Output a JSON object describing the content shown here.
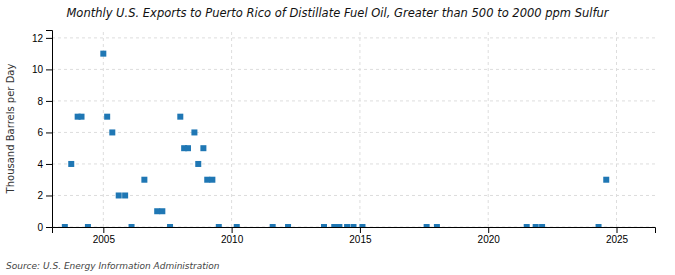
{
  "chart_data": {
    "type": "scatter",
    "title": "Monthly U.S. Exports to Puerto Rico of Distillate Fuel Oil, Greater than 500 to 2000 ppm Sulfur",
    "ylabel": "Thousand Barrels per Day",
    "annotations": [
      "Source: U.S. Energy Information Administration"
    ],
    "marker": "square",
    "grid": true,
    "xlim": [
      2003.0,
      2026.5
    ],
    "ylim": [
      0,
      12.5
    ],
    "xticks": [
      2005,
      2010,
      2015,
      2020,
      2025
    ],
    "yticks": [
      0,
      2,
      4,
      6,
      8,
      10,
      12
    ],
    "x": [
      2003.5,
      2003.75,
      2004.0,
      2004.15,
      2004.4,
      2005.0,
      2005.15,
      2005.35,
      2005.6,
      2005.85,
      2006.1,
      2006.6,
      2007.1,
      2007.3,
      2007.6,
      2008.0,
      2008.15,
      2008.3,
      2008.55,
      2008.7,
      2008.9,
      2009.05,
      2009.25,
      2009.5,
      2010.2,
      2011.6,
      2012.2,
      2013.6,
      2014.0,
      2014.2,
      2014.5,
      2014.75,
      2015.1,
      2017.6,
      2018.0,
      2021.5,
      2021.85,
      2022.1,
      2024.3,
      2024.6
    ],
    "values": [
      0.0,
      4.0,
      7.0,
      7.0,
      0.0,
      11.0,
      7.0,
      6.0,
      2.0,
      2.0,
      0.0,
      3.0,
      1.0,
      1.0,
      0.0,
      7.0,
      5.0,
      5.0,
      6.0,
      4.0,
      5.0,
      3.0,
      3.0,
      0.0,
      0.0,
      0.0,
      0.0,
      0.0,
      0.0,
      0.0,
      0.0,
      0.0,
      0.0,
      0.0,
      0.0,
      0.0,
      0.0,
      0.0,
      0.0,
      3.0
    ]
  }
}
